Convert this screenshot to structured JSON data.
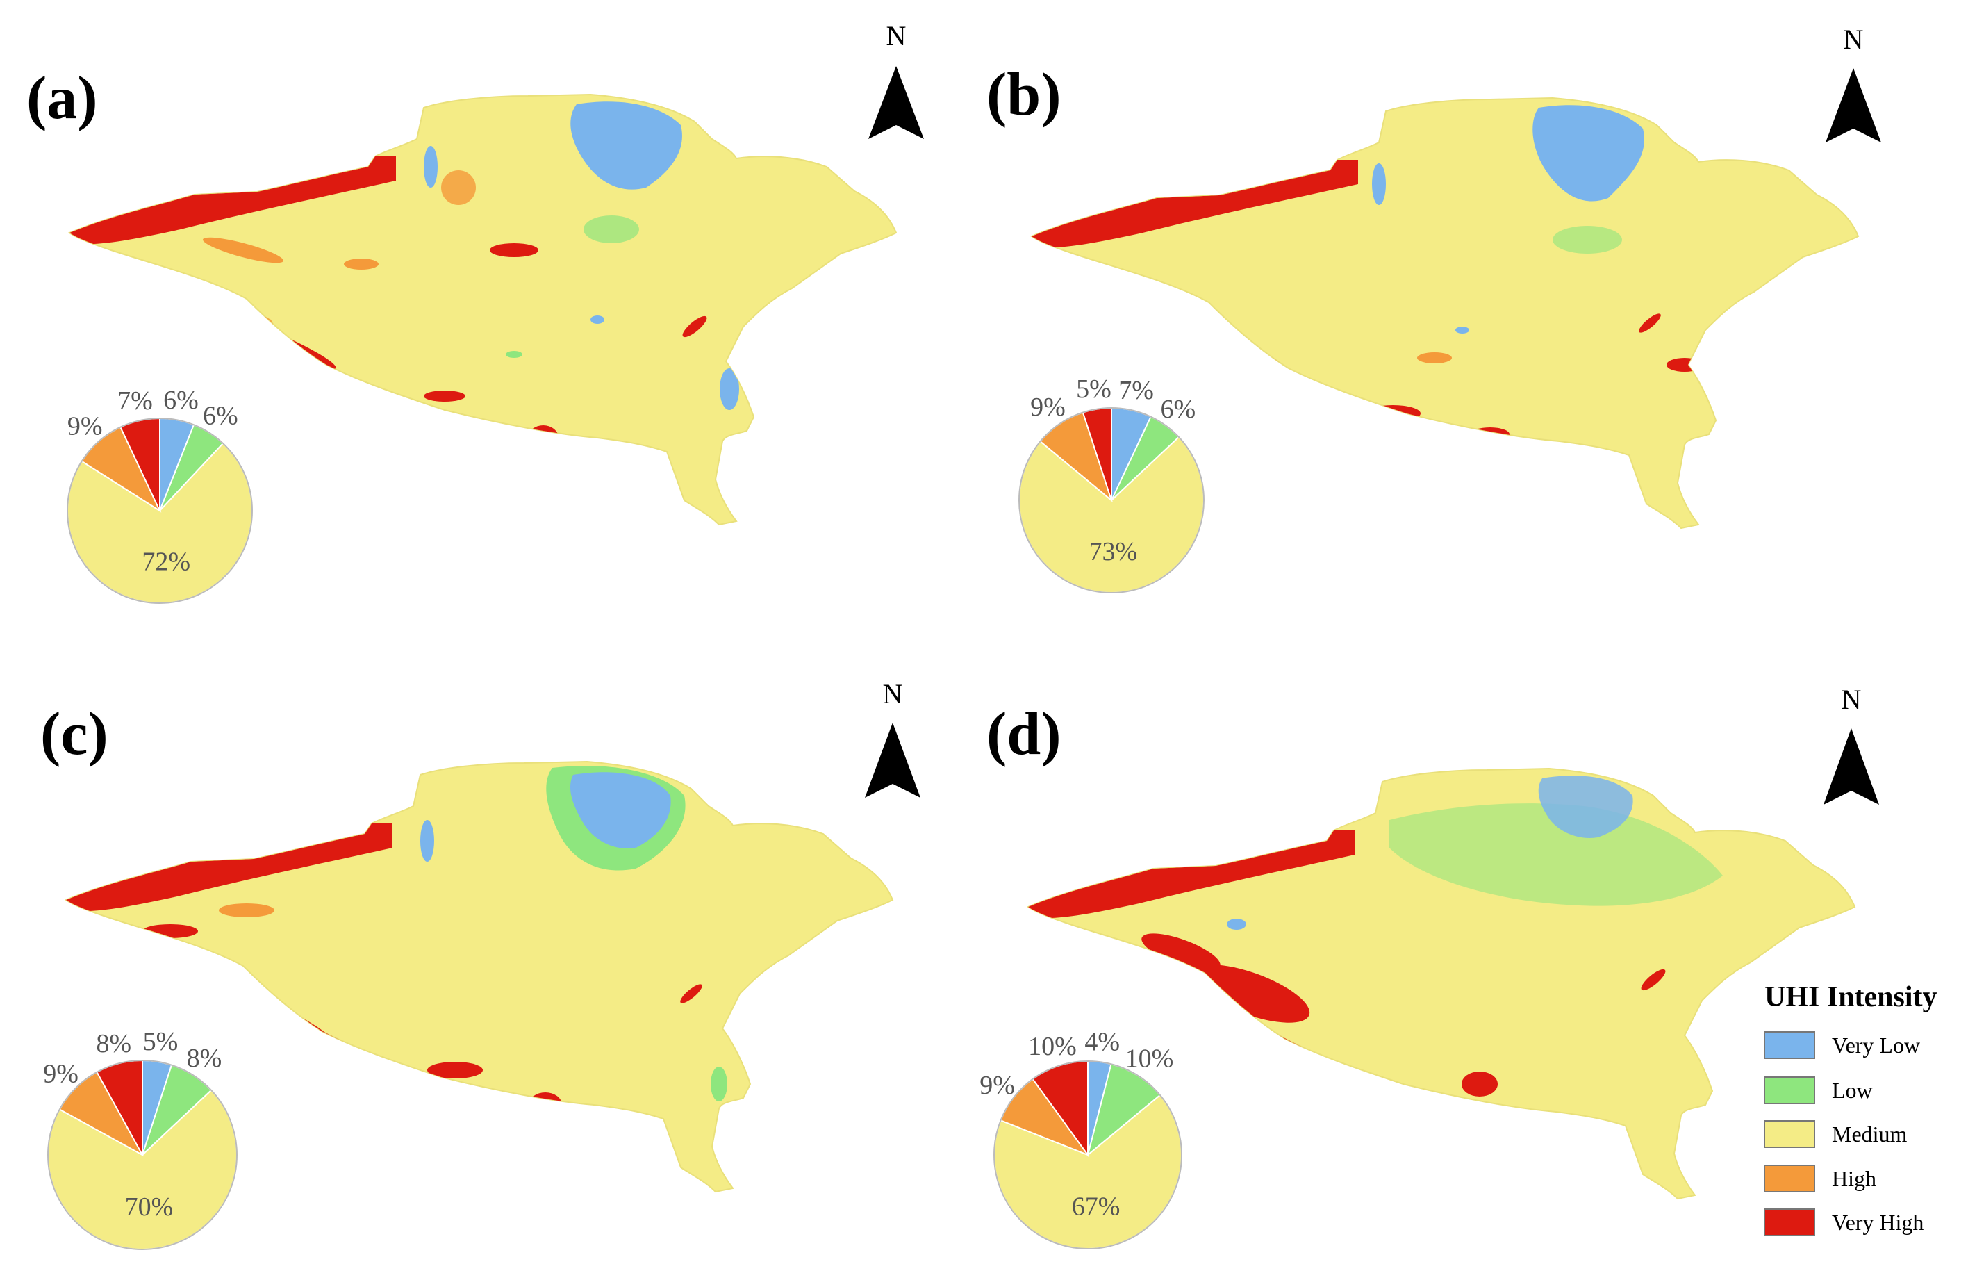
{
  "figure": {
    "panels": [
      {
        "label": "(a)",
        "north": "N",
        "pie": [
          {
            "class": "Very Low",
            "value": 6,
            "label": "6%"
          },
          {
            "class": "Low",
            "value": 6,
            "label": "6%"
          },
          {
            "class": "Medium",
            "value": 72,
            "label": "72%"
          },
          {
            "class": "High",
            "value": 9,
            "label": "9%"
          },
          {
            "class": "Very High",
            "value": 7,
            "label": "7%"
          }
        ]
      },
      {
        "label": "(b)",
        "north": "N",
        "pie": [
          {
            "class": "Very Low",
            "value": 7,
            "label": "7%"
          },
          {
            "class": "Low",
            "value": 6,
            "label": "6%"
          },
          {
            "class": "Medium",
            "value": 73,
            "label": "73%"
          },
          {
            "class": "High",
            "value": 9,
            "label": "9%"
          },
          {
            "class": "Very High",
            "value": 5,
            "label": "5%"
          }
        ]
      },
      {
        "label": "(c)",
        "north": "N",
        "pie": [
          {
            "class": "Very Low",
            "value": 5,
            "label": "5%"
          },
          {
            "class": "Low",
            "value": 8,
            "label": "8%"
          },
          {
            "class": "Medium",
            "value": 70,
            "label": "70%"
          },
          {
            "class": "High",
            "value": 9,
            "label": "9%"
          },
          {
            "class": "Very High",
            "value": 8,
            "label": "8%"
          }
        ]
      },
      {
        "label": "(d)",
        "north": "N",
        "pie": [
          {
            "class": "Very Low",
            "value": 4,
            "label": "4%"
          },
          {
            "class": "Low",
            "value": 10,
            "label": "10%"
          },
          {
            "class": "Medium",
            "value": 67,
            "label": "67%"
          },
          {
            "class": "High",
            "value": 9,
            "label": "9%"
          },
          {
            "class": "Very High",
            "value": 10,
            "label": "10%"
          }
        ]
      }
    ],
    "legend": {
      "title": "UHI Intensity",
      "items": [
        {
          "label": "Very Low",
          "color": "#7ab4ec"
        },
        {
          "label": "Low",
          "color": "#8ee67e"
        },
        {
          "label": "Medium",
          "color": "#f4ec86"
        },
        {
          "label": "High",
          "color": "#f49a3a"
        },
        {
          "label": "Very High",
          "color": "#dd1a10"
        }
      ]
    },
    "colors": {
      "Very Low": "#7ab4ec",
      "Low": "#8ee67e",
      "Medium": "#f4ec86",
      "High": "#f49a3a",
      "Very High": "#dd1a10"
    }
  }
}
